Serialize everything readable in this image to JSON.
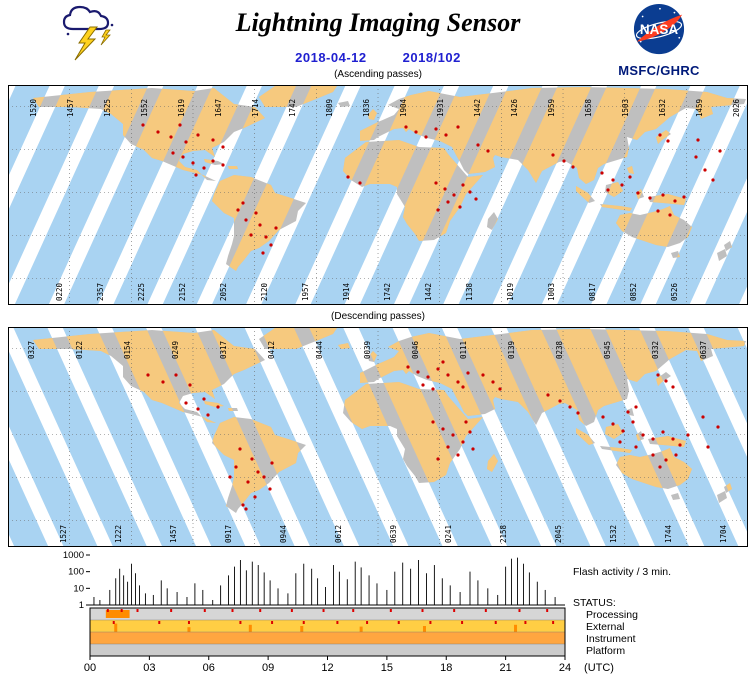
{
  "header": {
    "title": "Lightning Imaging Sensor",
    "date_iso": "2018-04-12",
    "date_doy": "2018/102",
    "agency": "MSFC/GHRC",
    "nasa_logo_text": "NASA"
  },
  "colors": {
    "accent_blue": "#2020D0",
    "swath_ocean": "#A9D3F2",
    "swath_land": "#F6C97E",
    "land": "#BFBFBF",
    "ocean": "#FFFFFF",
    "flash": "#CC0000",
    "grid": "#666666",
    "status_mark": "#DD0000",
    "status_bump": "#FF8C00",
    "nasa_blue": "#0B3D91",
    "nasa_red": "#FC3D21"
  },
  "maps": [
    {
      "caption": "(Ascending passes)",
      "direction": "ascending",
      "top_start": 28,
      "top_step": 37,
      "bottom_start": 54,
      "bottom_step": 41,
      "top_labels": [
        "1520",
        "1457",
        "1525",
        "1552",
        "1619",
        "1647",
        "1714",
        "1742",
        "1809",
        "1836",
        "1904",
        "1931",
        "1442",
        "1426",
        "1959",
        "1658",
        "1503",
        "1632",
        "1459",
        "2026"
      ],
      "bottom_labels": [
        "0220",
        "2357",
        "2225",
        "2152",
        "2052",
        "2120",
        "1957",
        "1914",
        "1742",
        "1442",
        "1138",
        "1019",
        "1003",
        "0817",
        "0852",
        "0526"
      ],
      "flash_dots": [
        [
          135,
          40
        ],
        [
          150,
          47
        ],
        [
          163,
          52
        ],
        [
          178,
          57
        ],
        [
          190,
          50
        ],
        [
          205,
          55
        ],
        [
          215,
          62
        ],
        [
          172,
          40
        ],
        [
          175,
          72
        ],
        [
          185,
          78
        ],
        [
          196,
          83
        ],
        [
          205,
          76
        ],
        [
          215,
          80
        ],
        [
          188,
          90
        ],
        [
          165,
          68
        ],
        [
          235,
          118
        ],
        [
          248,
          128
        ],
        [
          252,
          140
        ],
        [
          243,
          150
        ],
        [
          258,
          152
        ],
        [
          263,
          160
        ],
        [
          238,
          135
        ],
        [
          268,
          143
        ],
        [
          255,
          168
        ],
        [
          230,
          125
        ],
        [
          340,
          92
        ],
        [
          352,
          98
        ],
        [
          398,
          42
        ],
        [
          408,
          47
        ],
        [
          418,
          52
        ],
        [
          428,
          44
        ],
        [
          438,
          50
        ],
        [
          450,
          42
        ],
        [
          428,
          98
        ],
        [
          437,
          104
        ],
        [
          446,
          110
        ],
        [
          455,
          100
        ],
        [
          462,
          107
        ],
        [
          440,
          117
        ],
        [
          452,
          122
        ],
        [
          468,
          114
        ],
        [
          430,
          125
        ],
        [
          470,
          60
        ],
        [
          480,
          66
        ],
        [
          545,
          70
        ],
        [
          556,
          76
        ],
        [
          565,
          82
        ],
        [
          594,
          88
        ],
        [
          605,
          95
        ],
        [
          614,
          100
        ],
        [
          622,
          92
        ],
        [
          600,
          105
        ],
        [
          630,
          108
        ],
        [
          642,
          113
        ],
        [
          655,
          110
        ],
        [
          667,
          116
        ],
        [
          676,
          112
        ],
        [
          650,
          126
        ],
        [
          662,
          130
        ],
        [
          688,
          72
        ],
        [
          697,
          85
        ],
        [
          705,
          95
        ],
        [
          712,
          66
        ],
        [
          690,
          55
        ],
        [
          652,
          50
        ],
        [
          660,
          56
        ]
      ]
    },
    {
      "caption": "(Descending passes)",
      "direction": "descending",
      "top_start": 26,
      "top_step": 48,
      "bottom_start": 58,
      "bottom_step": 55,
      "top_labels": [
        "0327",
        "0122",
        "0154",
        "0249",
        "0317",
        "0412",
        "0444",
        "0039",
        "0046",
        "0111",
        "0139",
        "0238",
        "0545",
        "0332",
        "0637"
      ],
      "bottom_labels": [
        "1527",
        "1222",
        "1457",
        "0917",
        "0944",
        "0612",
        "0639",
        "0241",
        "2158",
        "2045",
        "1532",
        "1744",
        "1704"
      ],
      "flash_dots": [
        [
          140,
          48
        ],
        [
          155,
          55
        ],
        [
          168,
          48
        ],
        [
          182,
          58
        ],
        [
          178,
          76
        ],
        [
          190,
          82
        ],
        [
          200,
          88
        ],
        [
          210,
          80
        ],
        [
          196,
          72
        ],
        [
          232,
          122
        ],
        [
          244,
          132
        ],
        [
          250,
          145
        ],
        [
          240,
          155
        ],
        [
          256,
          150
        ],
        [
          262,
          162
        ],
        [
          247,
          170
        ],
        [
          235,
          178
        ],
        [
          228,
          140
        ],
        [
          264,
          136
        ],
        [
          238,
          182
        ],
        [
          222,
          150
        ],
        [
          400,
          40
        ],
        [
          410,
          45
        ],
        [
          420,
          50
        ],
        [
          430,
          42
        ],
        [
          440,
          48
        ],
        [
          450,
          55
        ],
        [
          415,
          58
        ],
        [
          425,
          62
        ],
        [
          435,
          35
        ],
        [
          460,
          46
        ],
        [
          455,
          60
        ],
        [
          425,
          95
        ],
        [
          435,
          102
        ],
        [
          445,
          108
        ],
        [
          455,
          115
        ],
        [
          462,
          105
        ],
        [
          440,
          120
        ],
        [
          450,
          128
        ],
        [
          430,
          132
        ],
        [
          465,
          122
        ],
        [
          458,
          95
        ],
        [
          475,
          48
        ],
        [
          485,
          55
        ],
        [
          492,
          62
        ],
        [
          540,
          68
        ],
        [
          552,
          74
        ],
        [
          562,
          80
        ],
        [
          570,
          86
        ],
        [
          595,
          90
        ],
        [
          605,
          97
        ],
        [
          615,
          104
        ],
        [
          625,
          95
        ],
        [
          635,
          108
        ],
        [
          645,
          112
        ],
        [
          655,
          105
        ],
        [
          665,
          112
        ],
        [
          672,
          118
        ],
        [
          680,
          108
        ],
        [
          612,
          115
        ],
        [
          628,
          120
        ],
        [
          620,
          85
        ],
        [
          628,
          80
        ],
        [
          645,
          128
        ],
        [
          658,
          133
        ],
        [
          668,
          128
        ],
        [
          652,
          140
        ],
        [
          700,
          120
        ],
        [
          710,
          100
        ],
        [
          695,
          90
        ],
        [
          650,
          48
        ],
        [
          658,
          54
        ],
        [
          665,
          60
        ]
      ]
    }
  ],
  "chart_data": {
    "type": "bar",
    "title": "Flash activity / 3 min.",
    "y_scale": "log",
    "ylim": [
      1,
      1000
    ],
    "xlim": [
      0,
      24
    ],
    "y_ticks": [
      "1000",
      "100",
      "10",
      "1"
    ],
    "x_ticks": [
      "00",
      "03",
      "06",
      "09",
      "12",
      "15",
      "18",
      "21",
      "24"
    ],
    "x_unit": "(UTC)",
    "spikes": [
      [
        0.2,
        3
      ],
      [
        0.5,
        2
      ],
      [
        1.0,
        8
      ],
      [
        1.3,
        40
      ],
      [
        1.5,
        150
      ],
      [
        1.7,
        60
      ],
      [
        1.9,
        25
      ],
      [
        2.1,
        300
      ],
      [
        2.3,
        80
      ],
      [
        2.5,
        15
      ],
      [
        2.8,
        5
      ],
      [
        3.2,
        4
      ],
      [
        3.6,
        30
      ],
      [
        3.9,
        10
      ],
      [
        4.4,
        6
      ],
      [
        4.9,
        3
      ],
      [
        5.3,
        20
      ],
      [
        5.7,
        8
      ],
      [
        6.2,
        2
      ],
      [
        6.6,
        15
      ],
      [
        7.0,
        60
      ],
      [
        7.3,
        200
      ],
      [
        7.6,
        500
      ],
      [
        7.9,
        120
      ],
      [
        8.2,
        400
      ],
      [
        8.5,
        250
      ],
      [
        8.8,
        90
      ],
      [
        9.1,
        30
      ],
      [
        9.5,
        10
      ],
      [
        10.0,
        5
      ],
      [
        10.4,
        80
      ],
      [
        10.8,
        300
      ],
      [
        11.2,
        150
      ],
      [
        11.5,
        40
      ],
      [
        11.9,
        12
      ],
      [
        12.3,
        250
      ],
      [
        12.6,
        100
      ],
      [
        13.0,
        35
      ],
      [
        13.4,
        400
      ],
      [
        13.7,
        180
      ],
      [
        14.1,
        60
      ],
      [
        14.5,
        20
      ],
      [
        15.0,
        8
      ],
      [
        15.4,
        100
      ],
      [
        15.8,
        350
      ],
      [
        16.2,
        150
      ],
      [
        16.6,
        500
      ],
      [
        17.0,
        80
      ],
      [
        17.4,
        250
      ],
      [
        17.8,
        40
      ],
      [
        18.2,
        15
      ],
      [
        18.7,
        6
      ],
      [
        19.2,
        100
      ],
      [
        19.6,
        30
      ],
      [
        20.1,
        10
      ],
      [
        20.6,
        4
      ],
      [
        21.0,
        200
      ],
      [
        21.3,
        600
      ],
      [
        21.6,
        700
      ],
      [
        21.9,
        300
      ],
      [
        22.2,
        90
      ],
      [
        22.6,
        25
      ],
      [
        23.0,
        8
      ],
      [
        23.5,
        3
      ]
    ],
    "status": {
      "label": "STATUS:",
      "rows": [
        {
          "label": "Processing",
          "color": "#D6D6D6",
          "marks": [
            0.9,
            1.6,
            2.4,
            4.1,
            5.8,
            7.2,
            8.6,
            10.2,
            11.8,
            13.3,
            15.2,
            16.8,
            18.4,
            20.0,
            21.7,
            23.1
          ],
          "segments": [
            [
              0.8,
              2.0
            ]
          ]
        },
        {
          "label": "External",
          "color": "#FFCE44",
          "marks": [
            1.2,
            3.5,
            5.0,
            7.6,
            9.2,
            10.8,
            12.5,
            14.0,
            15.6,
            17.2,
            18.8,
            20.5,
            22.0,
            23.4
          ],
          "bumps": [
            [
              1.3,
              0.7
            ],
            [
              5.0,
              0.4
            ],
            [
              8.1,
              0.6
            ],
            [
              10.7,
              0.5
            ],
            [
              13.7,
              0.45
            ],
            [
              16.9,
              0.5
            ],
            [
              21.5,
              0.6
            ]
          ]
        },
        {
          "label": "Instrument",
          "color": "#FFA640"
        },
        {
          "label": "Platform",
          "color": "#CBCBCB"
        }
      ]
    }
  }
}
